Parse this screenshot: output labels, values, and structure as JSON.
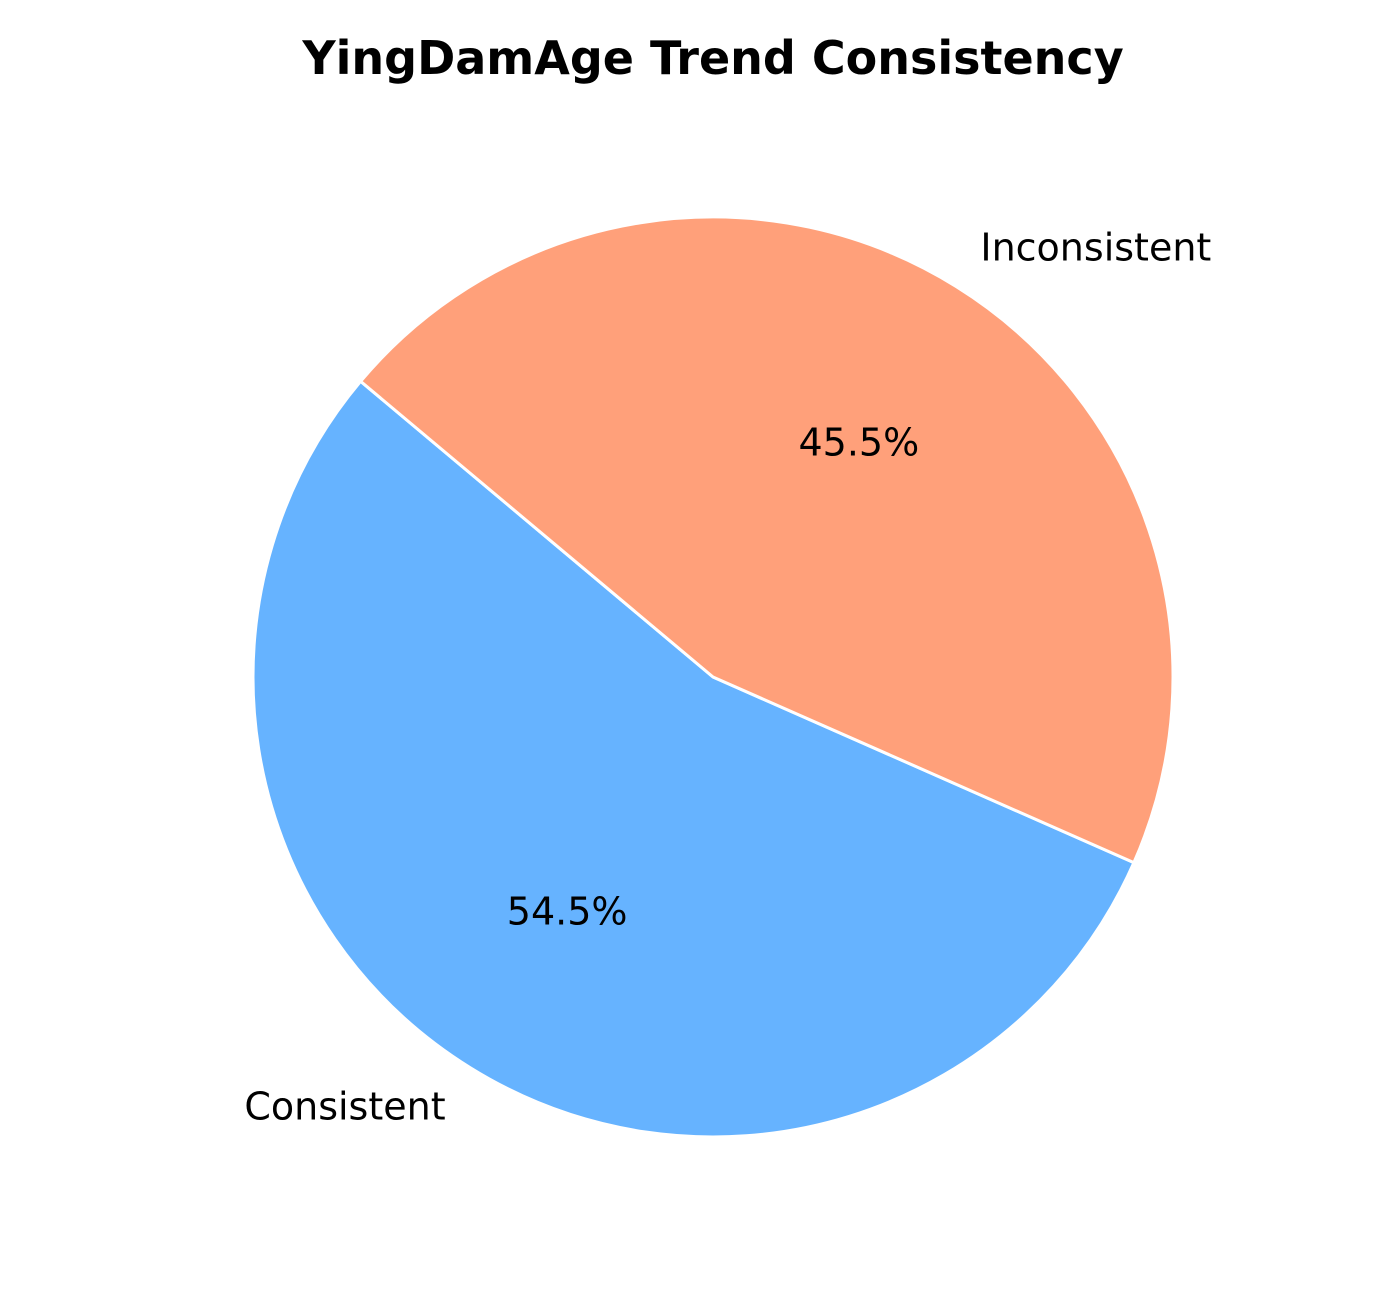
{
  "chart_data": {
    "type": "pie",
    "title": "YingDamAge Trend Consistency",
    "categories": [
      "Consistent",
      "Inconsistent"
    ],
    "values": [
      54.5,
      45.5
    ],
    "value_labels": [
      "54.5%",
      "45.5%"
    ],
    "colors": [
      "#66b3ff",
      "#ffa07a"
    ],
    "edge_color": "#ffffff",
    "legend": "none"
  }
}
